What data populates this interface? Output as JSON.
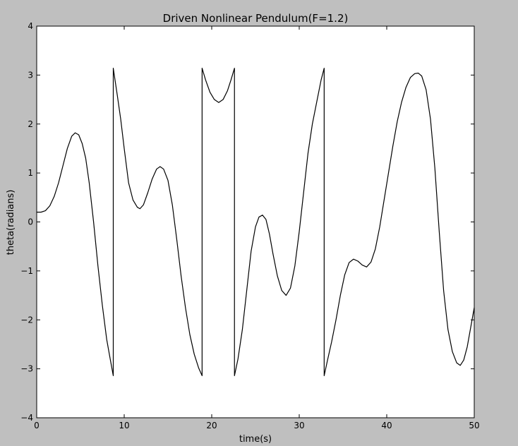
{
  "chart_data": {
    "type": "line",
    "title": "Driven Nonlinear Pendulum(F=1.2)",
    "xlabel": "time(s)",
    "ylabel": "theta(radians)",
    "xlim": [
      0,
      50
    ],
    "ylim": [
      -4,
      4
    ],
    "xticks": [
      0,
      10,
      20,
      30,
      40,
      50
    ],
    "yticks": [
      -4,
      -3,
      -2,
      -1,
      0,
      1,
      2,
      3,
      4
    ],
    "xtick_labels": [
      "0",
      "10",
      "20",
      "30",
      "40",
      "50"
    ],
    "ytick_labels": [
      "−4",
      "−3",
      "−2",
      "−1",
      "0",
      "1",
      "2",
      "3",
      "4"
    ],
    "grid": false,
    "line_color": "#000000",
    "background_color": "#bfbfbf",
    "plot_background_color": "#ffffff",
    "series": [
      {
        "points": [
          [
            0.0,
            0.2
          ],
          [
            0.5,
            0.2
          ],
          [
            1.0,
            0.23
          ],
          [
            1.5,
            0.33
          ],
          [
            2.0,
            0.52
          ],
          [
            2.5,
            0.8
          ],
          [
            3.0,
            1.15
          ],
          [
            3.5,
            1.5
          ],
          [
            4.0,
            1.75
          ],
          [
            4.4,
            1.82
          ],
          [
            4.8,
            1.78
          ],
          [
            5.2,
            1.6
          ],
          [
            5.6,
            1.3
          ],
          [
            6.0,
            0.8
          ],
          [
            6.5,
            0.0
          ],
          [
            7.0,
            -0.9
          ],
          [
            7.5,
            -1.7
          ],
          [
            8.0,
            -2.4
          ],
          [
            8.4,
            -2.8
          ],
          [
            8.75,
            -3.14
          ],
          [
            8.75,
            3.14
          ],
          [
            9.2,
            2.6
          ],
          [
            9.6,
            2.1
          ],
          [
            10.0,
            1.5
          ],
          [
            10.5,
            0.8
          ],
          [
            11.0,
            0.45
          ],
          [
            11.5,
            0.3
          ],
          [
            11.8,
            0.27
          ],
          [
            12.2,
            0.35
          ],
          [
            12.7,
            0.6
          ],
          [
            13.2,
            0.88
          ],
          [
            13.7,
            1.08
          ],
          [
            14.1,
            1.13
          ],
          [
            14.5,
            1.08
          ],
          [
            15.0,
            0.85
          ],
          [
            15.5,
            0.35
          ],
          [
            16.0,
            -0.35
          ],
          [
            16.5,
            -1.1
          ],
          [
            17.0,
            -1.75
          ],
          [
            17.5,
            -2.3
          ],
          [
            18.0,
            -2.7
          ],
          [
            18.5,
            -2.98
          ],
          [
            18.9,
            -3.14
          ],
          [
            18.9,
            3.14
          ],
          [
            19.3,
            2.9
          ],
          [
            19.8,
            2.65
          ],
          [
            20.3,
            2.5
          ],
          [
            20.8,
            2.44
          ],
          [
            21.3,
            2.5
          ],
          [
            21.8,
            2.68
          ],
          [
            22.2,
            2.9
          ],
          [
            22.6,
            3.14
          ],
          [
            22.6,
            -3.14
          ],
          [
            23.0,
            -2.8
          ],
          [
            23.5,
            -2.2
          ],
          [
            24.0,
            -1.4
          ],
          [
            24.5,
            -0.6
          ],
          [
            25.0,
            -0.1
          ],
          [
            25.4,
            0.1
          ],
          [
            25.8,
            0.14
          ],
          [
            26.2,
            0.05
          ],
          [
            26.6,
            -0.25
          ],
          [
            27.0,
            -0.65
          ],
          [
            27.5,
            -1.1
          ],
          [
            28.0,
            -1.4
          ],
          [
            28.5,
            -1.5
          ],
          [
            29.0,
            -1.35
          ],
          [
            29.5,
            -0.9
          ],
          [
            30.0,
            -0.2
          ],
          [
            30.5,
            0.6
          ],
          [
            31.0,
            1.4
          ],
          [
            31.5,
            2.0
          ],
          [
            32.0,
            2.45
          ],
          [
            32.5,
            2.9
          ],
          [
            32.85,
            3.14
          ],
          [
            32.85,
            -3.14
          ],
          [
            33.2,
            -2.85
          ],
          [
            33.7,
            -2.45
          ],
          [
            34.2,
            -2.0
          ],
          [
            34.7,
            -1.5
          ],
          [
            35.2,
            -1.08
          ],
          [
            35.7,
            -0.83
          ],
          [
            36.2,
            -0.76
          ],
          [
            36.7,
            -0.8
          ],
          [
            37.2,
            -0.88
          ],
          [
            37.7,
            -0.92
          ],
          [
            38.2,
            -0.82
          ],
          [
            38.7,
            -0.55
          ],
          [
            39.2,
            -0.1
          ],
          [
            39.7,
            0.45
          ],
          [
            40.2,
            1.0
          ],
          [
            40.7,
            1.55
          ],
          [
            41.2,
            2.05
          ],
          [
            41.7,
            2.45
          ],
          [
            42.2,
            2.75
          ],
          [
            42.7,
            2.95
          ],
          [
            43.2,
            3.03
          ],
          [
            43.6,
            3.04
          ],
          [
            44.0,
            2.98
          ],
          [
            44.5,
            2.7
          ],
          [
            45.0,
            2.1
          ],
          [
            45.5,
            1.1
          ],
          [
            46.0,
            -0.2
          ],
          [
            46.5,
            -1.4
          ],
          [
            47.0,
            -2.2
          ],
          [
            47.5,
            -2.65
          ],
          [
            48.0,
            -2.88
          ],
          [
            48.4,
            -2.93
          ],
          [
            48.8,
            -2.82
          ],
          [
            49.2,
            -2.55
          ],
          [
            49.6,
            -2.15
          ],
          [
            50.0,
            -1.75
          ]
        ]
      }
    ]
  }
}
